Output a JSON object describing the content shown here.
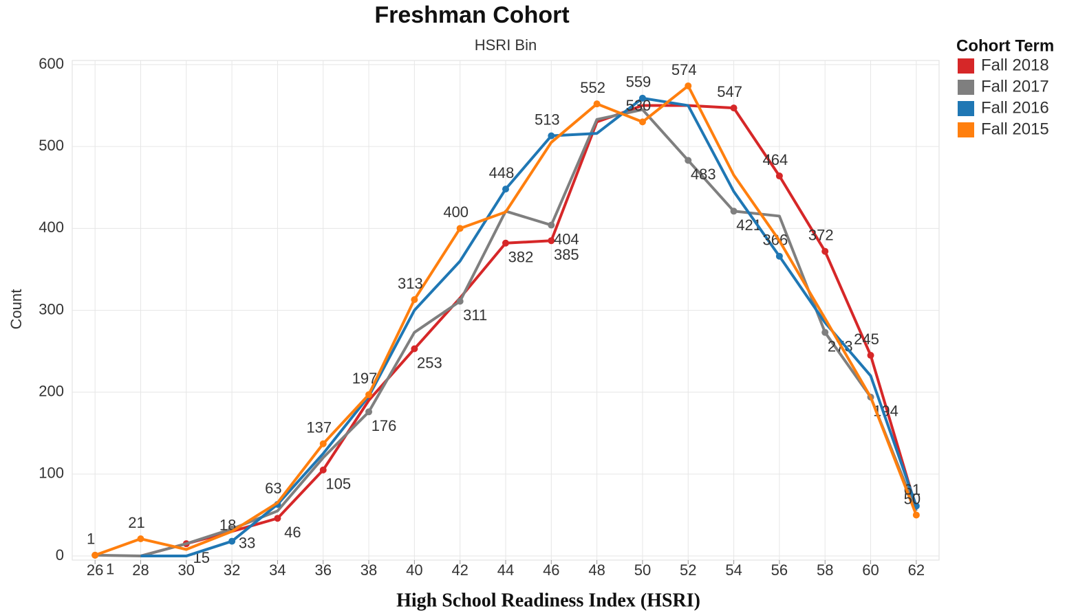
{
  "chart_data": {
    "type": "line",
    "title": "Freshman Cohort",
    "subtitle": "HSRI Bin",
    "x_label": "High School Readiness Index (HSRI)",
    "y_label": "Count",
    "legend_title": "Cohort Term",
    "legend": "right",
    "grid": true,
    "x": [
      26,
      28,
      30,
      32,
      34,
      36,
      38,
      40,
      42,
      44,
      46,
      48,
      50,
      52,
      54,
      56,
      58,
      60,
      62
    ],
    "xlim": [
      25,
      63
    ],
    "xticks": [
      26,
      28,
      30,
      32,
      34,
      36,
      38,
      40,
      42,
      44,
      46,
      48,
      50,
      52,
      54,
      56,
      58,
      60,
      62
    ],
    "ylim": [
      -5,
      605
    ],
    "yticks": [
      0,
      100,
      200,
      300,
      400,
      500,
      600
    ],
    "series": [
      {
        "name": "Fall 2018",
        "color": "#d62728",
        "values": [
          null,
          0,
          15,
          30,
          46,
          105,
          190,
          253,
          315,
          382,
          385,
          530,
          550,
          550,
          547,
          464,
          372,
          245,
          58
        ],
        "value_labels": [
          null,
          null,
          "15",
          null,
          "46",
          "105",
          null,
          "253",
          null,
          "382",
          "385",
          null,
          null,
          null,
          "547",
          "464",
          "372",
          "245",
          null
        ]
      },
      {
        "name": "Fall 2017",
        "color": "#7f7f7f",
        "values": [
          1,
          0,
          15,
          33,
          55,
          120,
          176,
          273,
          311,
          421,
          404,
          533,
          545,
          483,
          421,
          415,
          273,
          194,
          55
        ],
        "value_labels": [
          "1",
          null,
          null,
          "33",
          null,
          null,
          "176",
          null,
          "311",
          null,
          "404",
          null,
          null,
          "483",
          "421",
          null,
          "273",
          "194",
          null
        ]
      },
      {
        "name": "Fall 2016",
        "color": "#1f77b4",
        "values": [
          null,
          0,
          0,
          18,
          63,
          125,
          195,
          300,
          360,
          448,
          513,
          516,
          559,
          550,
          445,
          366,
          285,
          220,
          61
        ],
        "value_labels": [
          null,
          null,
          null,
          "18",
          "63",
          null,
          null,
          null,
          null,
          "448",
          "513",
          null,
          "559",
          null,
          null,
          "366",
          null,
          null,
          "61"
        ]
      },
      {
        "name": "Fall 2015",
        "color": "#ff7f0e",
        "values": [
          1,
          21,
          8,
          30,
          65,
          137,
          197,
          313,
          400,
          420,
          505,
          552,
          530,
          574,
          465,
          385,
          290,
          194,
          50
        ],
        "value_labels": [
          "1",
          "21",
          null,
          null,
          null,
          "137",
          "197",
          "313",
          "400",
          null,
          null,
          "552",
          "530",
          "574",
          null,
          null,
          null,
          null,
          "50"
        ]
      }
    ]
  }
}
